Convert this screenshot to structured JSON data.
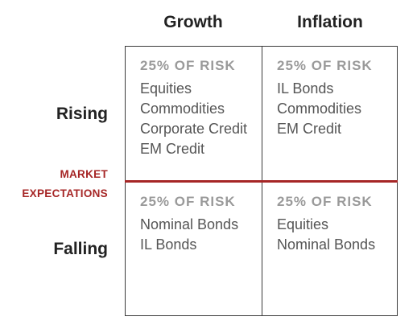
{
  "columns": [
    "Growth",
    "Inflation"
  ],
  "rows": [
    "Rising",
    "Falling"
  ],
  "market_expectations": [
    "MARKET",
    "EXPECTATIONS"
  ],
  "accent_color": "#a62626",
  "cells": {
    "rising_growth": {
      "risk": "25% OF RISK",
      "items": [
        "Equities",
        "Commodities",
        "Corporate Credit",
        "EM Credit"
      ]
    },
    "rising_inflation": {
      "risk": "25% OF RISK",
      "items": [
        "IL Bonds",
        "Commodities",
        "EM Credit"
      ]
    },
    "falling_growth": {
      "risk": "25% OF RISK",
      "items": [
        "Nominal Bonds",
        "IL Bonds"
      ]
    },
    "falling_inflation": {
      "risk": "25% OF RISK",
      "items": [
        "Equities",
        "Nominal Bonds"
      ]
    }
  }
}
